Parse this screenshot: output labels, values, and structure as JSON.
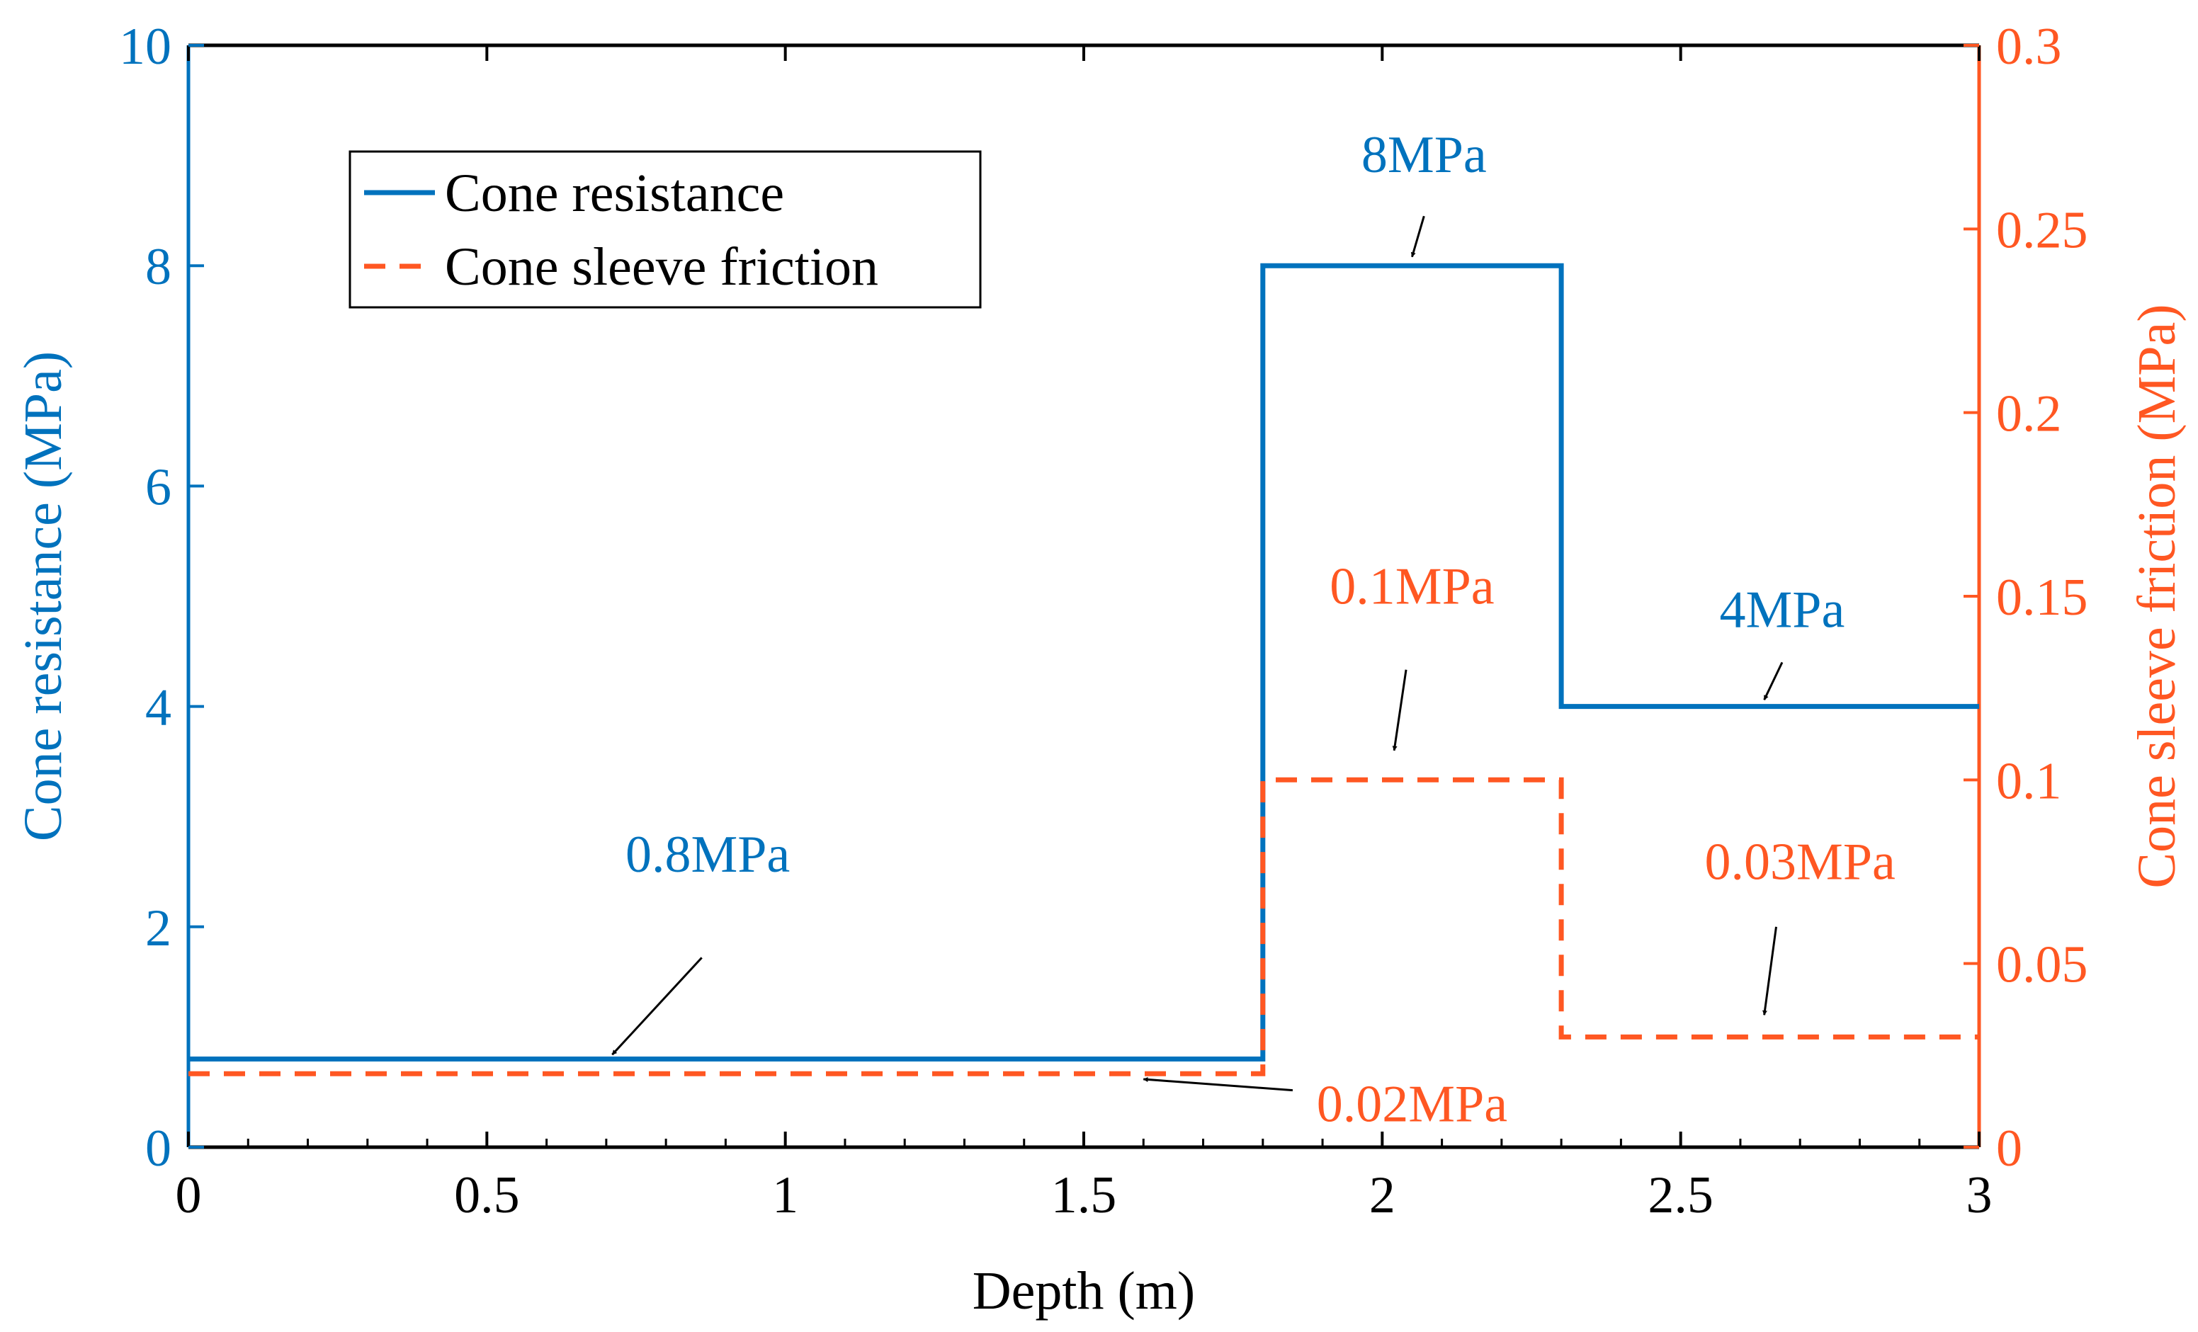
{
  "chart_data": {
    "type": "line",
    "title": "",
    "xlabel": "Depth (m)",
    "ylabel_left": "Cone resistance (MPa)",
    "ylabel_right": "Cone sleeve friction (MPa)",
    "xlim": [
      0,
      3
    ],
    "ylim_left": [
      0,
      10
    ],
    "ylim_right": [
      0,
      0.3
    ],
    "x_ticks": [
      0,
      0.5,
      1,
      1.5,
      2,
      2.5,
      3
    ],
    "x_tick_labels": [
      "0",
      "0.5",
      "1",
      "1.5",
      "2",
      "2.5",
      "3"
    ],
    "y_left_ticks": [
      0,
      2,
      4,
      6,
      8,
      10
    ],
    "y_left_tick_labels": [
      "0",
      "2",
      "4",
      "6",
      "8",
      "10"
    ],
    "y_right_ticks": [
      0,
      0.05,
      0.1,
      0.15,
      0.2,
      0.25,
      0.3
    ],
    "y_right_tick_labels": [
      "0",
      "0.05",
      "0.1",
      "0.15",
      "0.2",
      "0.25",
      "0.3"
    ],
    "grid": false,
    "legend_position": "top-left",
    "series": [
      {
        "name": "Cone resistance",
        "axis": "left",
        "style": "solid",
        "color": "#0072BD",
        "x": [
          0,
          1.8,
          1.8,
          2.3,
          2.3,
          3
        ],
        "y": [
          0.8,
          0.8,
          8,
          8,
          4,
          4
        ]
      },
      {
        "name": "Cone sleeve friction",
        "axis": "right",
        "style": "dashed",
        "color": "#FF5722",
        "x": [
          0,
          1.8,
          1.8,
          2.3,
          2.3,
          3
        ],
        "y": [
          0.02,
          0.02,
          0.1,
          0.1,
          0.03,
          0.03
        ]
      }
    ],
    "annotations": [
      {
        "text": "0.8MPa",
        "color": "#0072BD",
        "axis": "left",
        "label_x": 0.87,
        "label_y": 2.5,
        "arrow_from": [
          0.86,
          1.72
        ],
        "arrow_to": [
          0.71,
          0.84
        ]
      },
      {
        "text": "8MPa",
        "color": "#0072BD",
        "axis": "left",
        "label_x": 2.07,
        "label_y": 8.85,
        "arrow_from": [
          2.07,
          8.45
        ],
        "arrow_to": [
          2.05,
          8.08
        ]
      },
      {
        "text": "4MPa",
        "color": "#0072BD",
        "axis": "left",
        "label_x": 2.67,
        "label_y": 4.72,
        "arrow_from": [
          2.67,
          4.4
        ],
        "arrow_to": [
          2.64,
          4.06
        ]
      },
      {
        "text": "0.1MPa",
        "color": "#FF5722",
        "axis": "right",
        "label_x": 2.05,
        "label_y": 0.148,
        "arrow_from": [
          2.04,
          0.13
        ],
        "arrow_to": [
          2.02,
          0.108
        ]
      },
      {
        "text": "0.02MPa",
        "color": "#FF5722",
        "axis": "right",
        "label_x": 2.05,
        "label_y": 0.007,
        "arrow_from": [
          1.85,
          0.0155
        ],
        "arrow_to": [
          1.6,
          0.0185
        ]
      },
      {
        "text": "0.03MPa",
        "color": "#FF5722",
        "axis": "right",
        "label_x": 2.7,
        "label_y": 0.073,
        "arrow_from": [
          2.66,
          0.06
        ],
        "arrow_to": [
          2.64,
          0.036
        ]
      }
    ]
  }
}
